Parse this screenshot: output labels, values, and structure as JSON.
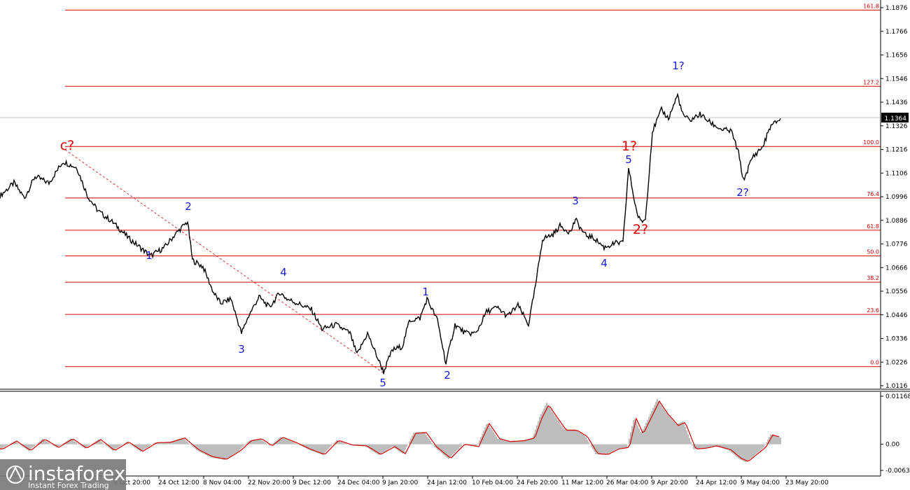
{
  "chart_data": [
    {
      "type": "line",
      "instrument_pane": "price",
      "price_axis_ticks": [
        "1.1876",
        "1.1766",
        "1.1656",
        "1.1546",
        "1.1436",
        "1.1326",
        "1.1216",
        "1.1106",
        "1.0996",
        "1.0886",
        "1.0776",
        "1.0666",
        "1.0556",
        "1.0446",
        "1.0336",
        "1.0226",
        "1.0116"
      ],
      "ylim": [
        1.0116,
        1.1876
      ],
      "current_price": "1.1364",
      "fib_levels": [
        {
          "label": "161.8",
          "price": 1.1865
        },
        {
          "label": "127.2",
          "price": 1.151
        },
        {
          "label": "100.0",
          "price": 1.123
        },
        {
          "label": "76.4",
          "price": 1.099
        },
        {
          "label": "61.8",
          "price": 1.084
        },
        {
          "label": "50.0",
          "price": 1.072
        },
        {
          "label": "38.2",
          "price": 1.0598
        },
        {
          "label": "23.6",
          "price": 1.0448
        },
        {
          "label": "0.0",
          "price": 1.0205
        }
      ],
      "time_axis_labels": [
        "9 Oct 20:00",
        "24 Oct 12:00",
        "8 Nov 04:00",
        "22 Nov 20:00",
        "9 Dec 12:00",
        "24 Dec 04:00",
        "9 Jan 20:00",
        "24 Jan 12:00",
        "10 Feb 04:00",
        "24 Feb 20:00",
        "11 Mar 12:00",
        "26 Mar 04:00",
        "9 Apr 20:00",
        "24 Apr 12:00",
        "9 May 04:00",
        "23 May 20:00"
      ],
      "series": [
        {
          "values": [
            [
              0,
              1.1
            ],
            [
              20,
              1.106
            ],
            [
              35,
              1.099
            ],
            [
              50,
              1.109
            ],
            [
              70,
              1.106
            ],
            [
              90,
              1.116
            ],
            [
              110,
              1.113
            ],
            [
              125,
              1.1
            ],
            [
              140,
              1.093
            ],
            [
              160,
              1.088
            ],
            [
              185,
              1.08
            ],
            [
              200,
              1.076
            ],
            [
              215,
              1.072
            ],
            [
              235,
              1.076
            ],
            [
              250,
              1.082
            ],
            [
              268,
              1.088
            ],
            [
              275,
              1.07
            ],
            [
              290,
              1.067
            ],
            [
              305,
              1.055
            ],
            [
              315,
              1.05
            ],
            [
              330,
              1.052
            ],
            [
              345,
              1.036
            ],
            [
              355,
              1.044
            ],
            [
              370,
              1.053
            ],
            [
              385,
              1.048
            ],
            [
              400,
              1.055
            ],
            [
              410,
              1.052
            ],
            [
              425,
              1.05
            ],
            [
              445,
              1.047
            ],
            [
              460,
              1.038
            ],
            [
              480,
              1.04
            ],
            [
              500,
              1.036
            ],
            [
              510,
              1.026
            ],
            [
              525,
              1.036
            ],
            [
              535,
              1.028
            ],
            [
              548,
              1.018
            ],
            [
              560,
              1.028
            ],
            [
              575,
              1.03
            ],
            [
              585,
              1.042
            ],
            [
              600,
              1.043
            ],
            [
              610,
              1.052
            ],
            [
              625,
              1.042
            ],
            [
              637,
              1.022
            ],
            [
              650,
              1.04
            ],
            [
              665,
              1.036
            ],
            [
              680,
              1.036
            ],
            [
              695,
              1.046
            ],
            [
              710,
              1.048
            ],
            [
              725,
              1.044
            ],
            [
              740,
              1.049
            ],
            [
              755,
              1.04
            ],
            [
              765,
              1.058
            ],
            [
              775,
              1.08
            ],
            [
              790,
              1.082
            ],
            [
              800,
              1.086
            ],
            [
              815,
              1.083
            ],
            [
              822,
              1.089
            ],
            [
              835,
              1.082
            ],
            [
              850,
              1.08
            ],
            [
              863,
              1.076
            ],
            [
              880,
              1.078
            ],
            [
              890,
              1.078
            ],
            [
              898,
              1.113
            ],
            [
              905,
              1.1
            ],
            [
              910,
              1.092
            ],
            [
              915,
              1.088
            ],
            [
              922,
              1.089
            ],
            [
              932,
              1.13
            ],
            [
              945,
              1.14
            ],
            [
              955,
              1.136
            ],
            [
              968,
              1.147
            ],
            [
              975,
              1.138
            ],
            [
              985,
              1.135
            ],
            [
              1000,
              1.138
            ],
            [
              1015,
              1.134
            ],
            [
              1030,
              1.131
            ],
            [
              1045,
              1.13
            ],
            [
              1055,
              1.12
            ],
            [
              1062,
              1.107
            ],
            [
              1075,
              1.118
            ],
            [
              1090,
              1.123
            ],
            [
              1100,
              1.132
            ],
            [
              1115,
              1.136
            ]
          ]
        }
      ],
      "wave_labels_blue": [
        "1",
        "2",
        "3",
        "4",
        "5",
        "1",
        "2",
        "3",
        "4",
        "5",
        "1?",
        "2?"
      ],
      "wave_labels_red": [
        "c?",
        "1?",
        "2?"
      ]
    },
    {
      "type": "area",
      "instrument_pane": "oscillator",
      "osc_axis_ticks": [
        "0.01168",
        "0.00",
        "-0.00635"
      ],
      "ylim": [
        -0.00635,
        0.01168
      ],
      "series": [
        {
          "values": [
            [
              0,
              -0.0012
            ],
            [
              20,
              0.0008
            ],
            [
              40,
              -0.0016
            ],
            [
              60,
              0.0013
            ],
            [
              80,
              -0.0008
            ],
            [
              100,
              0.0014
            ],
            [
              120,
              -0.001
            ],
            [
              140,
              0.0012
            ],
            [
              160,
              -0.0016
            ],
            [
              180,
              0.0006
            ],
            [
              200,
              -0.0018
            ],
            [
              220,
              0.0004
            ],
            [
              240,
              0.0005
            ],
            [
              260,
              0.0016
            ],
            [
              280,
              -0.0014
            ],
            [
              300,
              -0.0032
            ],
            [
              320,
              -0.0038
            ],
            [
              340,
              -0.0016
            ],
            [
              355,
              0.0009
            ],
            [
              370,
              0.0014
            ],
            [
              385,
              -0.0004
            ],
            [
              400,
              0.0018
            ],
            [
              420,
              0.0004
            ],
            [
              440,
              -0.0013
            ],
            [
              460,
              -0.0026
            ],
            [
              480,
              0.001
            ],
            [
              500,
              -0.0002
            ],
            [
              520,
              -0.0004
            ],
            [
              540,
              -0.0026
            ],
            [
              560,
              -0.0006
            ],
            [
              575,
              -0.0024
            ],
            [
              590,
              0.0028
            ],
            [
              605,
              0.003
            ],
            [
              620,
              -0.0007
            ],
            [
              640,
              -0.0036
            ],
            [
              660,
              0.0
            ],
            [
              680,
              -0.0006
            ],
            [
              695,
              0.0053
            ],
            [
              710,
              0.0014
            ],
            [
              725,
              0.0007
            ],
            [
              745,
              0.0009
            ],
            [
              760,
              0.0016
            ],
            [
              770,
              0.0066
            ],
            [
              780,
              0.0101
            ],
            [
              790,
              0.0074
            ],
            [
              805,
              0.0036
            ],
            [
              820,
              0.0036
            ],
            [
              835,
              0.002
            ],
            [
              850,
              -0.0024
            ],
            [
              865,
              -0.0026
            ],
            [
              880,
              -0.0012
            ],
            [
              895,
              -0.0008
            ],
            [
              905,
              0.0066
            ],
            [
              915,
              0.0026
            ],
            [
              925,
              0.0063
            ],
            [
              938,
              0.011
            ],
            [
              950,
              0.0078
            ],
            [
              965,
              0.0048
            ],
            [
              975,
              0.0056
            ],
            [
              990,
              -0.0012
            ],
            [
              1005,
              -0.001
            ],
            [
              1020,
              -0.0004
            ],
            [
              1040,
              -0.0014
            ],
            [
              1055,
              -0.0036
            ],
            [
              1065,
              -0.0044
            ],
            [
              1080,
              -0.0022
            ],
            [
              1090,
              -0.0008
            ],
            [
              1100,
              0.0024
            ],
            [
              1115,
              0.0016
            ]
          ]
        }
      ]
    }
  ],
  "watermark": {
    "brand": "instaforex",
    "tagline": "Instant Forex Trading"
  },
  "colors": {
    "price_line": "#000000",
    "fib_line": "#d40000",
    "blue_label": "#1a1ad6",
    "red_label": "#e00000",
    "osc_fill": "#bdbdbd",
    "osc_signal": "#d40000",
    "watermark_bg": "#7a7a7a"
  }
}
